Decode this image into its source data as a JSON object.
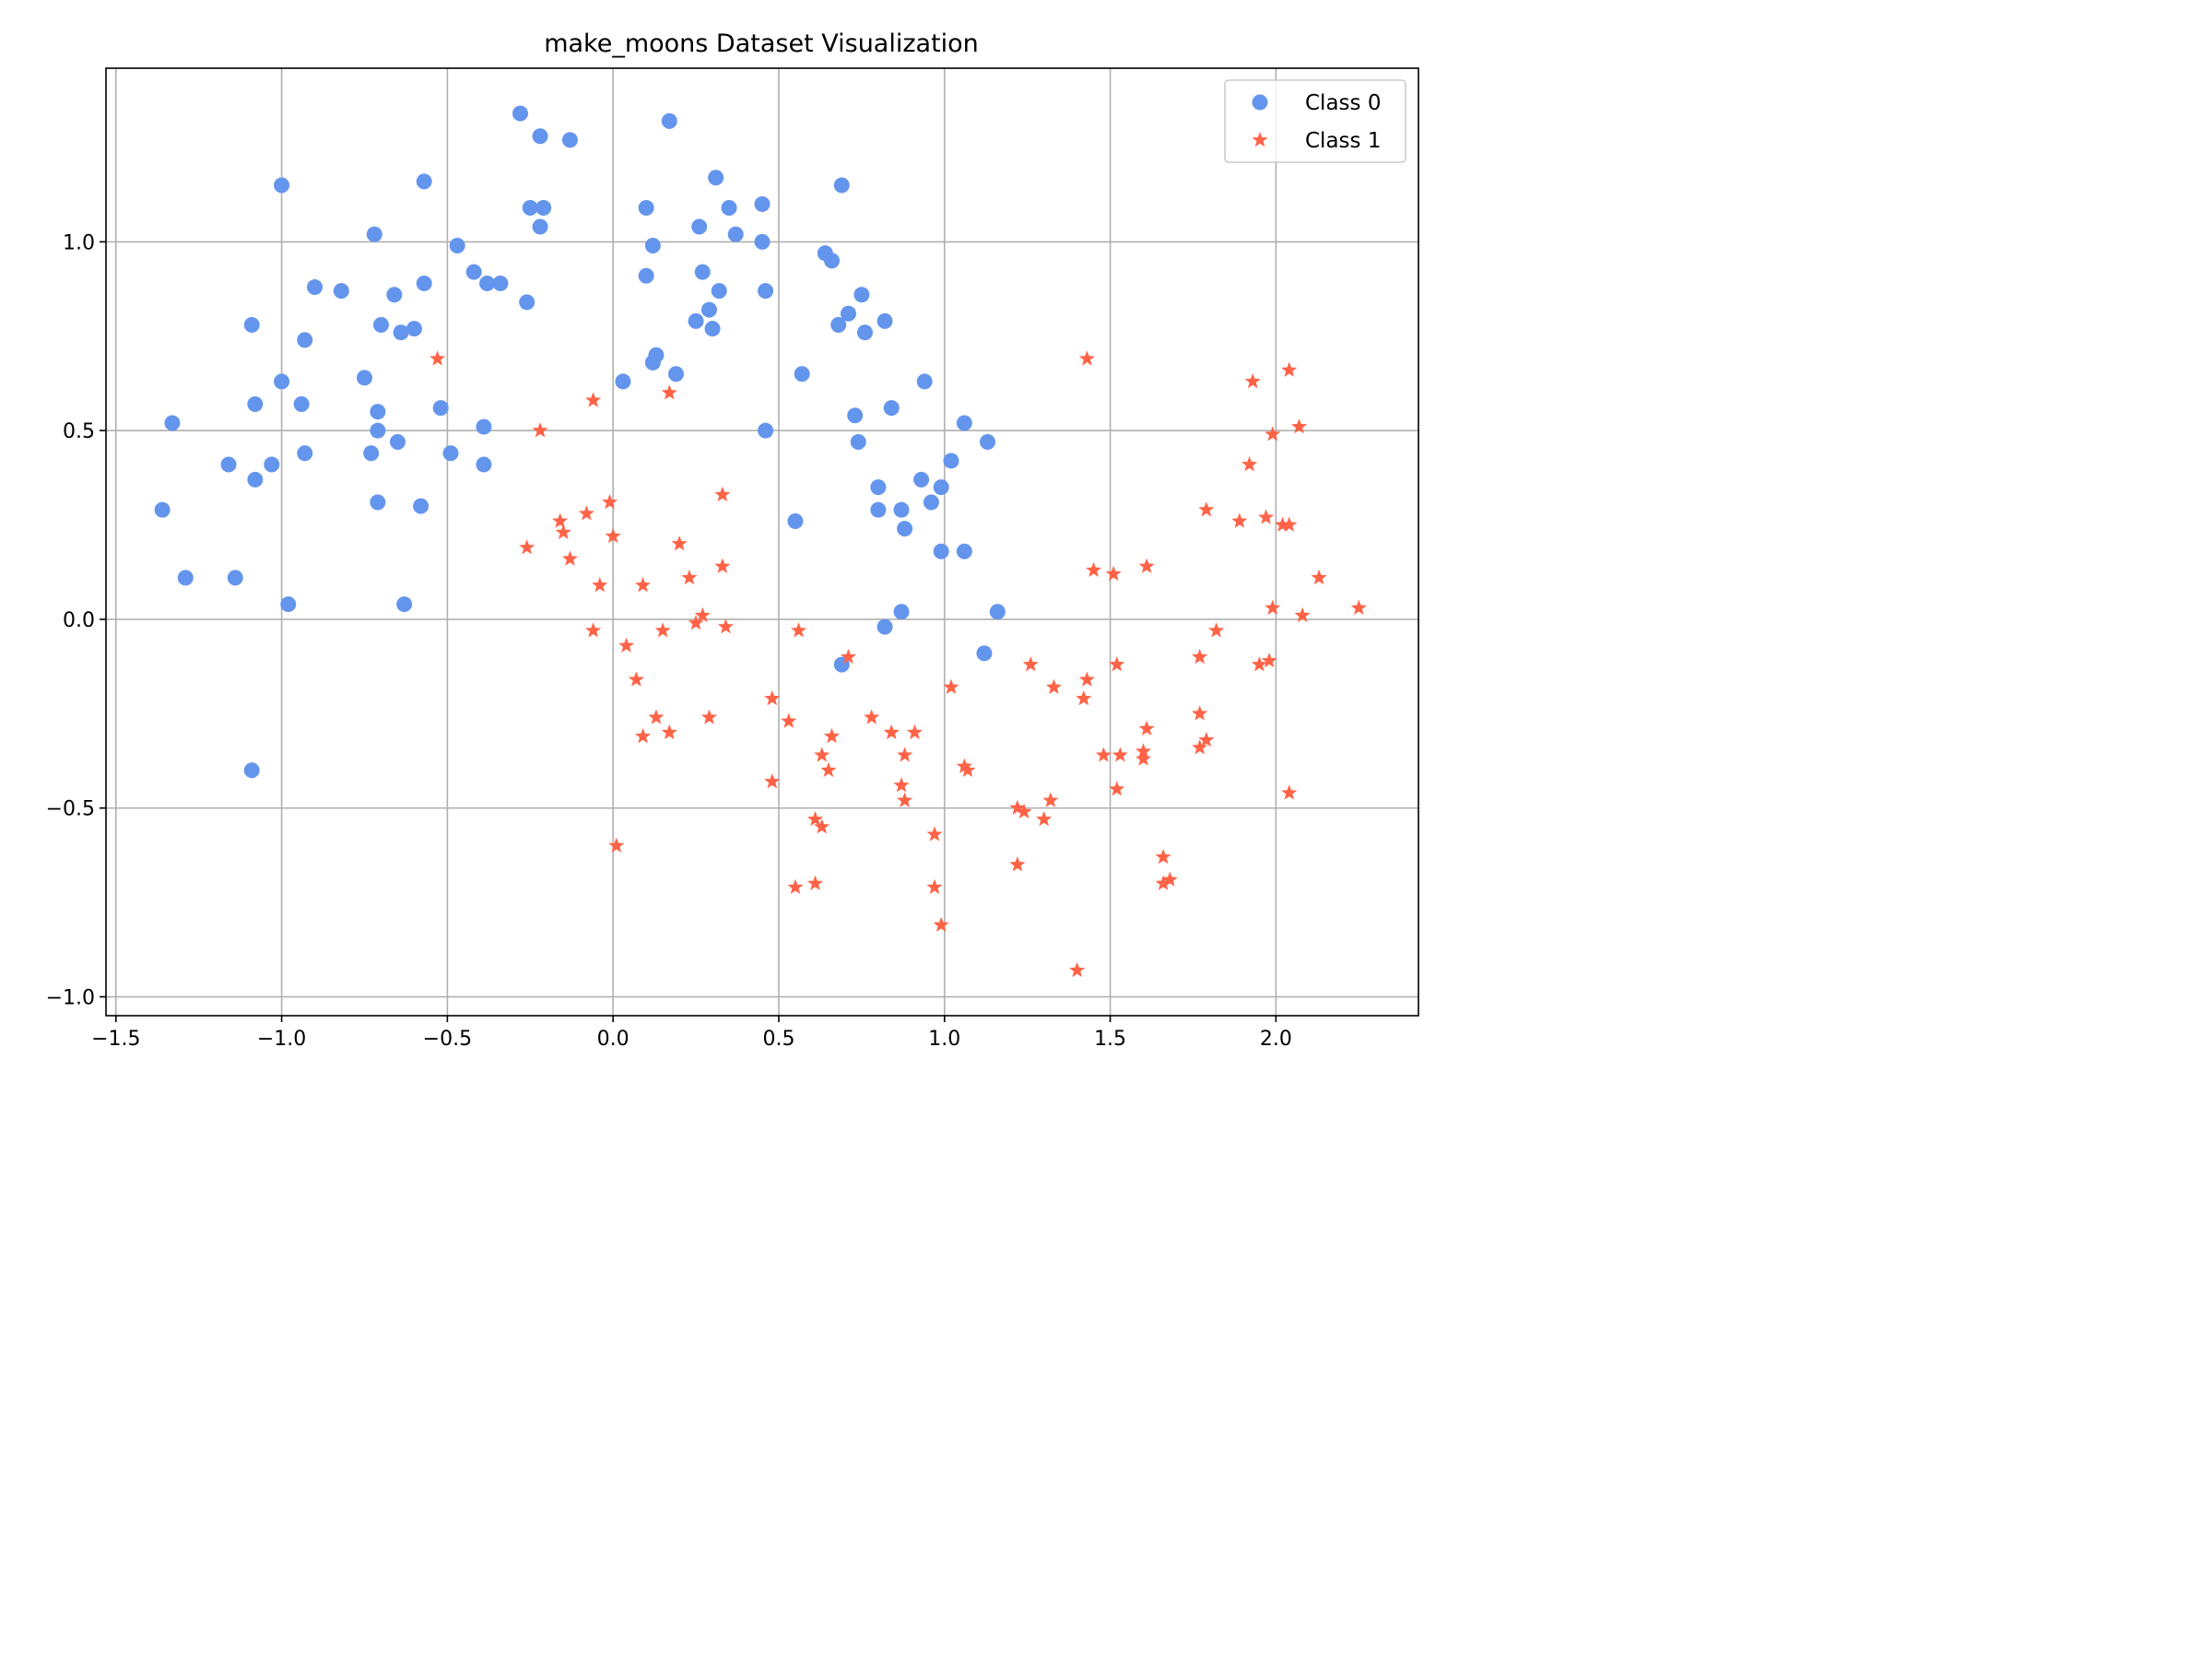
{
  "chart_data": {
    "type": "scatter",
    "title": "make_moons Dataset Visualization",
    "xlabel": "",
    "ylabel": "",
    "xlim": [
      -1.53,
      2.43
    ],
    "ylim": [
      -1.05,
      1.46
    ],
    "xticks": [
      -1.5,
      -1.0,
      -0.5,
      0.0,
      0.5,
      1.0,
      1.5,
      2.0
    ],
    "xtick_labels": [
      "−1.5",
      "−1.0",
      "−0.5",
      "0.0",
      "0.5",
      "1.0",
      "1.5",
      "2.0"
    ],
    "yticks": [
      -1.0,
      -0.5,
      0.0,
      0.5,
      1.0
    ],
    "ytick_labels": [
      "−1.0",
      "−0.5",
      "0.0",
      "0.5",
      "1.0"
    ],
    "grid": true,
    "legend_position": "top-right",
    "series": [
      {
        "name": "Class 0",
        "marker": "circle",
        "color": "#6495ED",
        "points": [
          [
            -1.36,
            0.29
          ],
          [
            -1.33,
            0.52
          ],
          [
            -1.29,
            0.11
          ],
          [
            -1.16,
            0.41
          ],
          [
            -1.14,
            0.11
          ],
          [
            -1.09,
            0.78
          ],
          [
            -1.09,
            -0.4
          ],
          [
            -1.08,
            0.57
          ],
          [
            -1.08,
            0.37
          ],
          [
            -1.03,
            0.41
          ],
          [
            -1.0,
            1.15
          ],
          [
            -1.0,
            0.63
          ],
          [
            -0.98,
            0.04
          ],
          [
            -0.94,
            0.57
          ],
          [
            -0.93,
            0.44
          ],
          [
            -0.93,
            0.74
          ],
          [
            -0.9,
            0.88
          ],
          [
            -0.82,
            0.87
          ],
          [
            -0.75,
            0.64
          ],
          [
            -0.73,
            0.44
          ],
          [
            -0.72,
            1.02
          ],
          [
            -0.71,
            0.5
          ],
          [
            -0.71,
            0.55
          ],
          [
            -0.71,
            0.31
          ],
          [
            -0.7,
            0.78
          ],
          [
            -0.66,
            0.86
          ],
          [
            -0.65,
            0.47
          ],
          [
            -0.64,
            0.76
          ],
          [
            -0.63,
            0.04
          ],
          [
            -0.6,
            0.77
          ],
          [
            -0.58,
            0.3
          ],
          [
            -0.57,
            1.16
          ],
          [
            -0.57,
            0.89
          ],
          [
            -0.52,
            0.56
          ],
          [
            -0.49,
            0.44
          ],
          [
            -0.47,
            0.99
          ],
          [
            -0.42,
            0.92
          ],
          [
            -0.39,
            0.51
          ],
          [
            -0.39,
            0.41
          ],
          [
            -0.38,
            0.89
          ],
          [
            -0.34,
            0.89
          ],
          [
            -0.28,
            1.34
          ],
          [
            -0.26,
            0.84
          ],
          [
            -0.25,
            1.09
          ],
          [
            -0.22,
            1.28
          ],
          [
            -0.22,
            1.04
          ],
          [
            -0.21,
            1.09
          ],
          [
            -0.13,
            1.27
          ],
          [
            0.03,
            0.63
          ],
          [
            0.1,
            1.09
          ],
          [
            0.1,
            0.91
          ],
          [
            0.12,
            0.99
          ],
          [
            0.12,
            0.68
          ],
          [
            0.13,
            0.7
          ],
          [
            0.17,
            1.32
          ],
          [
            0.19,
            0.65
          ],
          [
            0.25,
            0.79
          ],
          [
            0.26,
            1.04
          ],
          [
            0.27,
            0.92
          ],
          [
            0.29,
            0.82
          ],
          [
            0.3,
            0.77
          ],
          [
            0.31,
            1.17
          ],
          [
            0.32,
            0.87
          ],
          [
            0.35,
            1.09
          ],
          [
            0.37,
            1.02
          ],
          [
            0.45,
            1.1
          ],
          [
            0.45,
            1.0
          ],
          [
            0.46,
            0.87
          ],
          [
            0.46,
            0.5
          ],
          [
            0.55,
            0.26
          ],
          [
            0.57,
            0.65
          ],
          [
            0.64,
            0.97
          ],
          [
            0.66,
            0.95
          ],
          [
            0.68,
            0.78
          ],
          [
            0.69,
            1.15
          ],
          [
            0.69,
            -0.12
          ],
          [
            0.71,
            0.81
          ],
          [
            0.73,
            0.54
          ],
          [
            0.74,
            0.47
          ],
          [
            0.75,
            0.86
          ],
          [
            0.76,
            0.76
          ],
          [
            0.8,
            0.35
          ],
          [
            0.8,
            0.29
          ],
          [
            0.82,
            0.79
          ],
          [
            0.82,
            -0.02
          ],
          [
            0.84,
            0.56
          ],
          [
            0.87,
            0.29
          ],
          [
            0.87,
            0.02
          ],
          [
            0.88,
            0.24
          ],
          [
            0.93,
            0.37
          ],
          [
            0.94,
            0.63
          ],
          [
            0.96,
            0.31
          ],
          [
            0.99,
            0.35
          ],
          [
            0.99,
            0.18
          ],
          [
            1.02,
            0.42
          ],
          [
            1.06,
            0.52
          ],
          [
            1.06,
            0.18
          ],
          [
            1.12,
            -0.09
          ],
          [
            1.13,
            0.47
          ],
          [
            1.16,
            0.02
          ]
        ]
      },
      {
        "name": "Class 1",
        "marker": "star",
        "color": "#FF6347",
        "points": [
          [
            -0.53,
            0.69
          ],
          [
            -0.26,
            0.19
          ],
          [
            -0.22,
            0.5
          ],
          [
            -0.16,
            0.26
          ],
          [
            -0.15,
            0.23
          ],
          [
            -0.13,
            0.16
          ],
          [
            -0.08,
            0.28
          ],
          [
            -0.06,
            0.58
          ],
          [
            -0.06,
            -0.03
          ],
          [
            -0.04,
            0.09
          ],
          [
            -0.01,
            0.31
          ],
          [
            0.0,
            0.22
          ],
          [
            0.01,
            -0.6
          ],
          [
            0.04,
            -0.07
          ],
          [
            0.07,
            -0.16
          ],
          [
            0.09,
            0.09
          ],
          [
            0.09,
            -0.31
          ],
          [
            0.13,
            -0.26
          ],
          [
            0.15,
            -0.03
          ],
          [
            0.17,
            0.6
          ],
          [
            0.17,
            -0.3
          ],
          [
            0.2,
            0.2
          ],
          [
            0.23,
            0.11
          ],
          [
            0.25,
            -0.01
          ],
          [
            0.27,
            0.01
          ],
          [
            0.29,
            -0.26
          ],
          [
            0.33,
            0.33
          ],
          [
            0.33,
            0.14
          ],
          [
            0.34,
            -0.02
          ],
          [
            0.48,
            -0.21
          ],
          [
            0.48,
            -0.43
          ],
          [
            0.53,
            -0.27
          ],
          [
            0.55,
            -0.71
          ],
          [
            0.56,
            -0.03
          ],
          [
            0.61,
            -0.7
          ],
          [
            0.61,
            -0.53
          ],
          [
            0.63,
            -0.36
          ],
          [
            0.63,
            -0.55
          ],
          [
            0.65,
            -0.4
          ],
          [
            0.66,
            -0.31
          ],
          [
            0.71,
            -0.1
          ],
          [
            0.78,
            -0.26
          ],
          [
            0.84,
            -0.3
          ],
          [
            0.87,
            -0.44
          ],
          [
            0.88,
            -0.36
          ],
          [
            0.88,
            -0.48
          ],
          [
            0.91,
            -0.3
          ],
          [
            0.97,
            -0.57
          ],
          [
            0.97,
            -0.71
          ],
          [
            0.99,
            -0.81
          ],
          [
            1.02,
            -0.18
          ],
          [
            1.06,
            -0.39
          ],
          [
            1.07,
            -0.4
          ],
          [
            1.22,
            -0.5
          ],
          [
            1.22,
            -0.65
          ],
          [
            1.24,
            -0.51
          ],
          [
            1.26,
            -0.12
          ],
          [
            1.3,
            -0.53
          ],
          [
            1.32,
            -0.48
          ],
          [
            1.33,
            -0.18
          ],
          [
            1.4,
            -0.93
          ],
          [
            1.42,
            -0.21
          ],
          [
            1.43,
            0.69
          ],
          [
            1.43,
            -0.16
          ],
          [
            1.45,
            0.13
          ],
          [
            1.48,
            -0.36
          ],
          [
            1.51,
            0.12
          ],
          [
            1.52,
            -0.45
          ],
          [
            1.52,
            -0.12
          ],
          [
            1.53,
            -0.36
          ],
          [
            1.6,
            -0.35
          ],
          [
            1.6,
            -0.37
          ],
          [
            1.61,
            0.14
          ],
          [
            1.61,
            -0.29
          ],
          [
            1.66,
            -0.63
          ],
          [
            1.66,
            -0.7
          ],
          [
            1.68,
            -0.69
          ],
          [
            1.77,
            -0.25
          ],
          [
            1.77,
            -0.34
          ],
          [
            1.77,
            -0.1
          ],
          [
            1.79,
            -0.32
          ],
          [
            1.79,
            0.29
          ],
          [
            1.82,
            -0.03
          ],
          [
            1.89,
            0.26
          ],
          [
            1.92,
            0.41
          ],
          [
            1.93,
            0.63
          ],
          [
            1.95,
            -0.12
          ],
          [
            1.97,
            0.27
          ],
          [
            1.98,
            -0.11
          ],
          [
            1.99,
            0.49
          ],
          [
            1.99,
            0.03
          ],
          [
            2.02,
            0.25
          ],
          [
            2.04,
            0.25
          ],
          [
            2.04,
            0.66
          ],
          [
            2.04,
            -0.46
          ],
          [
            2.07,
            0.51
          ],
          [
            2.08,
            0.01
          ],
          [
            2.13,
            0.11
          ],
          [
            2.25,
            0.03
          ]
        ]
      }
    ]
  }
}
